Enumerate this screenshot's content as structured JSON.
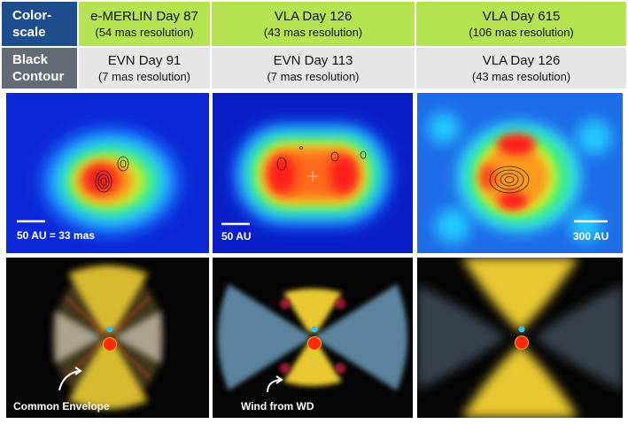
{
  "row_labels": {
    "colorscale": [
      "Color-",
      "scale"
    ],
    "contour": [
      "Black",
      "Contour"
    ]
  },
  "colorscale_headers": [
    {
      "title": "e-MERLIN Day 87",
      "resolution": "(54 mas resolution)"
    },
    {
      "title": "VLA Day 126",
      "resolution": "(43 mas resolution)"
    },
    {
      "title": "VLA Day 615",
      "resolution": "(106 mas resolution)"
    }
  ],
  "contour_headers": [
    {
      "title": "EVN Day 91",
      "resolution": "(7 mas resolution)"
    },
    {
      "title": "EVN Day 113",
      "resolution": "(7 mas resolution)"
    },
    {
      "title": "VLA Day 126",
      "resolution": "(43 mas resolution)"
    }
  ],
  "scale_bars": [
    "50 AU = 33 mas",
    "50 AU",
    "300 AU"
  ],
  "annotations": [
    "Common Envelope",
    "Wind from WD",
    ""
  ],
  "colors": {
    "label_blue": "#1f4e8f",
    "label_gray": "#636b76",
    "header_green": "#b5e351",
    "header_gray": "#e6e6e6"
  }
}
